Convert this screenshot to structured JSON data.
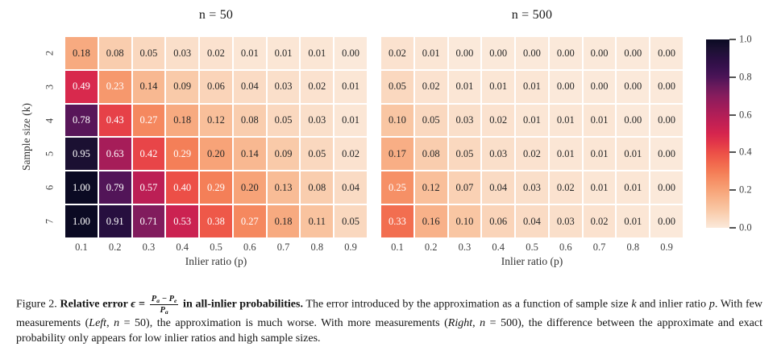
{
  "chart_data": [
    {
      "type": "heatmap",
      "title": "n = 50",
      "xlabel": "Inlier ratio (p)",
      "ylabel": "Sample size (k)",
      "x_ticklabels": [
        "0.1",
        "0.2",
        "0.3",
        "0.4",
        "0.5",
        "0.6",
        "0.7",
        "0.8",
        "0.9"
      ],
      "y_ticklabels": [
        "2",
        "3",
        "4",
        "5",
        "6",
        "7"
      ],
      "vmin": 0.0,
      "vmax": 1.0,
      "colormap": "rocket_r",
      "values": [
        [
          0.18,
          0.08,
          0.05,
          0.03,
          0.02,
          0.01,
          0.01,
          0.01,
          0.0
        ],
        [
          0.49,
          0.23,
          0.14,
          0.09,
          0.06,
          0.04,
          0.03,
          0.02,
          0.01
        ],
        [
          0.78,
          0.43,
          0.27,
          0.18,
          0.12,
          0.08,
          0.05,
          0.03,
          0.01
        ],
        [
          0.95,
          0.63,
          0.42,
          0.29,
          0.2,
          0.14,
          0.09,
          0.05,
          0.02
        ],
        [
          1.0,
          0.79,
          0.57,
          0.4,
          0.29,
          0.2,
          0.13,
          0.08,
          0.04
        ],
        [
          1.0,
          0.91,
          0.71,
          0.53,
          0.38,
          0.27,
          0.18,
          0.11,
          0.05
        ]
      ]
    },
    {
      "type": "heatmap",
      "title": "n = 500",
      "xlabel": "Inlier ratio (p)",
      "ylabel": "Sample size (k)",
      "x_ticklabels": [
        "0.1",
        "0.2",
        "0.3",
        "0.4",
        "0.5",
        "0.6",
        "0.7",
        "0.8",
        "0.9"
      ],
      "y_ticklabels": [
        "2",
        "3",
        "4",
        "5",
        "6",
        "7"
      ],
      "vmin": 0.0,
      "vmax": 1.0,
      "colormap": "rocket_r",
      "values": [
        [
          0.02,
          0.01,
          0.0,
          0.0,
          0.0,
          0.0,
          0.0,
          0.0,
          0.0
        ],
        [
          0.05,
          0.02,
          0.01,
          0.01,
          0.01,
          0.0,
          0.0,
          0.0,
          0.0
        ],
        [
          0.1,
          0.05,
          0.03,
          0.02,
          0.01,
          0.01,
          0.01,
          0.0,
          0.0
        ],
        [
          0.17,
          0.08,
          0.05,
          0.03,
          0.02,
          0.01,
          0.01,
          0.01,
          0.0
        ],
        [
          0.25,
          0.12,
          0.07,
          0.04,
          0.03,
          0.02,
          0.01,
          0.01,
          0.0
        ],
        [
          0.33,
          0.16,
          0.1,
          0.06,
          0.04,
          0.03,
          0.02,
          0.01,
          0.0
        ]
      ]
    }
  ],
  "colorbar": {
    "tick_labels": [
      "1.0",
      "0.8",
      "0.6",
      "0.4",
      "0.2",
      "0.0"
    ],
    "tick_values": [
      1.0,
      0.8,
      0.6,
      0.4,
      0.2,
      0.0
    ],
    "vmin": 0.0,
    "vmax": 1.0
  },
  "style": {
    "colormap_stops": [
      [
        0.0,
        "#fbe9da"
      ],
      [
        0.05,
        "#fad8bf"
      ],
      [
        0.1,
        "#f9c6a3"
      ],
      [
        0.15,
        "#f8b58d"
      ],
      [
        0.2,
        "#f7a378"
      ],
      [
        0.25,
        "#f69066"
      ],
      [
        0.3,
        "#f47b55"
      ],
      [
        0.35,
        "#f1654c"
      ],
      [
        0.4,
        "#ec4f47"
      ],
      [
        0.45,
        "#e23749"
      ],
      [
        0.5,
        "#d5254e"
      ],
      [
        0.55,
        "#c42053"
      ],
      [
        0.6,
        "#b11e57"
      ],
      [
        0.65,
        "#9e1c5a"
      ],
      [
        0.7,
        "#871c5d"
      ],
      [
        0.75,
        "#6b1a5c"
      ],
      [
        0.8,
        "#4c1457"
      ],
      [
        0.85,
        "#38114e"
      ],
      [
        0.9,
        "#2a0f42"
      ],
      [
        0.95,
        "#1b1032"
      ],
      [
        1.0,
        "#0b0a23"
      ]
    ],
    "annot_dark_color": "#262626",
    "annot_light_color": "#ffffff",
    "white_text_threshold": 0.22,
    "tick_color": "#3f3f3f",
    "title_color": "#1a1a1a"
  },
  "caption": {
    "segments": [
      {
        "text": "Figure 2. ",
        "style": "plain"
      },
      {
        "text": "Relative error ",
        "style": "bold"
      },
      {
        "text": "ϵ",
        "style": "bold-italic"
      },
      {
        "text": " = ",
        "style": "bold"
      },
      {
        "style": "fraction",
        "numerator": [
          [
            "P",
            ""
          ],
          [
            "a",
            "sub"
          ],
          [
            " − ",
            ""
          ],
          [
            "P",
            ""
          ],
          [
            "e",
            "sub"
          ]
        ],
        "denominator": [
          [
            "P",
            ""
          ],
          [
            "a",
            "sub"
          ]
        ]
      },
      {
        "text": " in all-inlier probabilities.",
        "style": "bold"
      },
      {
        "text": " The error introduced by the approximation as a function of sample size ",
        "style": "plain"
      },
      {
        "text": "k",
        "style": "italic"
      },
      {
        "text": " and inlier ratio ",
        "style": "plain"
      },
      {
        "text": "p",
        "style": "italic"
      },
      {
        "text": ". With few measurements (",
        "style": "plain"
      },
      {
        "text": "Left",
        "style": "italic"
      },
      {
        "text": ", ",
        "style": "plain"
      },
      {
        "text": "n",
        "style": "italic"
      },
      {
        "text": " = 50), the approximation is much worse. With more measurements (",
        "style": "plain"
      },
      {
        "text": "Right",
        "style": "italic"
      },
      {
        "text": ", ",
        "style": "plain"
      },
      {
        "text": "n",
        "style": "italic"
      },
      {
        "text": " = 500), the difference between the approximate and exact probability only appears for low inlier ratios and high sample sizes.",
        "style": "plain"
      }
    ]
  }
}
